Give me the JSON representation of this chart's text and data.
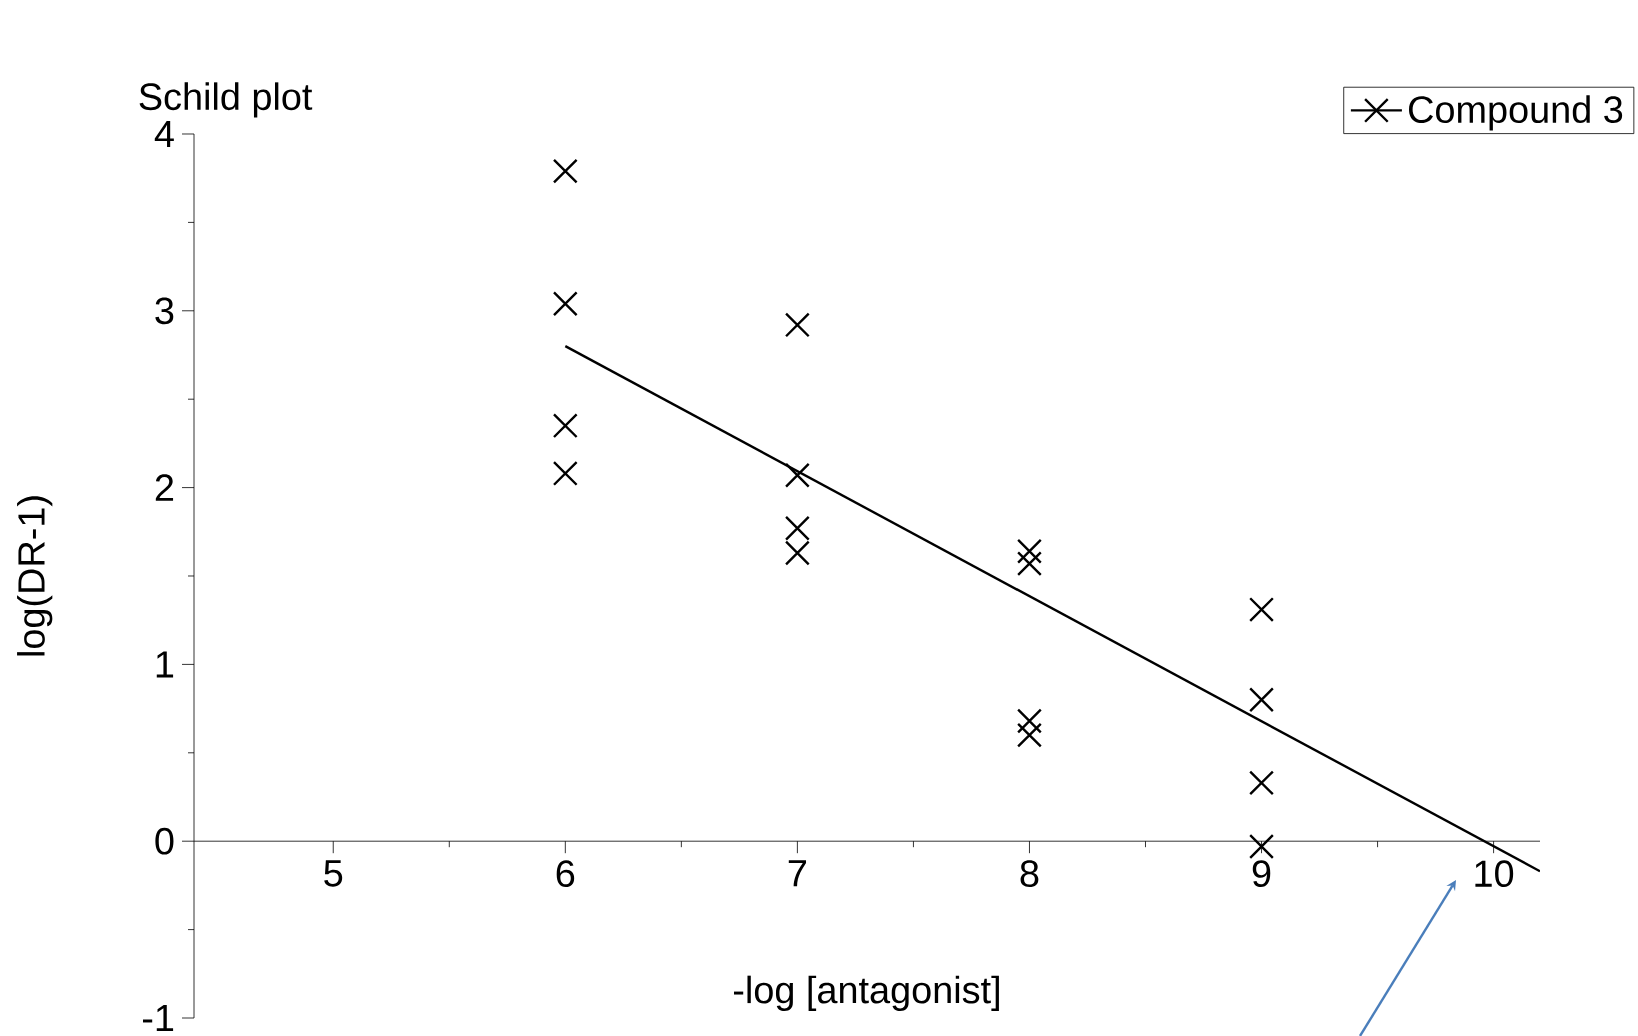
{
  "chart_data": {
    "type": "scatter",
    "title": "Schild plot",
    "xlabel": "-log [antagonist]",
    "ylabel": "log(DR-1)",
    "xlim": [
      4.4,
      10.2
    ],
    "ylim": [
      -1,
      4
    ],
    "xticks": [
      5,
      6,
      7,
      8,
      9,
      10
    ],
    "yticks": [
      -1,
      0,
      1,
      2,
      3,
      4
    ],
    "legend": "top right",
    "grid": false,
    "series": [
      {
        "name": "Compound 3",
        "marker": "cross",
        "color": "#000000",
        "x": [
          6,
          6,
          6,
          6,
          7,
          7,
          7,
          7,
          8,
          8,
          8,
          8,
          9,
          9,
          9,
          9
        ],
        "values": [
          3.79,
          3.04,
          2.35,
          2.08,
          2.92,
          2.07,
          1.77,
          1.63,
          1.64,
          1.57,
          0.68,
          0.6,
          1.31,
          0.8,
          0.33,
          -0.03
        ]
      },
      {
        "type": "line",
        "marker": "none",
        "color": "#000000",
        "x": [
          6,
          10.2
        ],
        "values": [
          2.8,
          -0.17
        ]
      }
    ]
  }
}
